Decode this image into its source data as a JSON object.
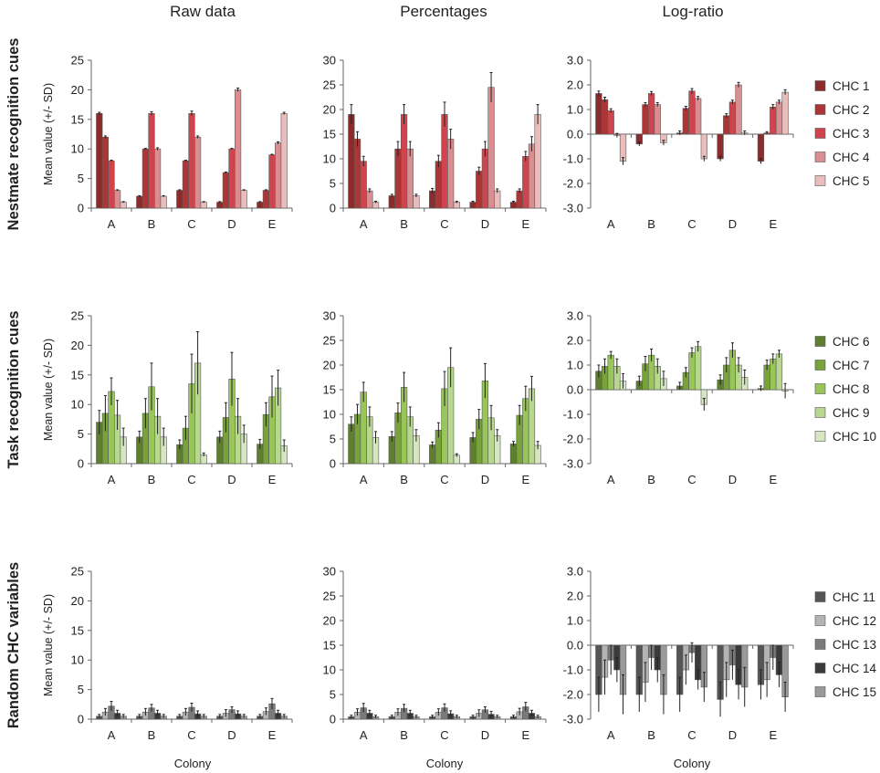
{
  "column_titles": [
    "Raw data",
    "Percentages",
    "Log-ratio"
  ],
  "row_titles": [
    "Nestmate recognition cues",
    "Task recognition cues",
    "Random CHC variables"
  ],
  "ylabel": "Mean value (+/- SD)",
  "xlabel": "Colony",
  "categories": [
    "A",
    "B",
    "C",
    "D",
    "E"
  ],
  "legends": [
    [
      {
        "name": "CHC 1",
        "color": "#8b2b2b"
      },
      {
        "name": "CHC 2",
        "color": "#ad3535"
      },
      {
        "name": "CHC 3",
        "color": "#d0454d"
      },
      {
        "name": "CHC 4",
        "color": "#d98e92"
      },
      {
        "name": "CHC 5",
        "color": "#eabcbc"
      }
    ],
    [
      {
        "name": "CHC 6",
        "color": "#5e7f2e"
      },
      {
        "name": "CHC 7",
        "color": "#78a23a"
      },
      {
        "name": "CHC 8",
        "color": "#98c658"
      },
      {
        "name": "CHC 9",
        "color": "#b8d890"
      },
      {
        "name": "CHC 10",
        "color": "#d6e6c0"
      }
    ],
    [
      {
        "name": "CHC 11",
        "color": "#555555"
      },
      {
        "name": "CHC 12",
        "color": "#b4b4b4"
      },
      {
        "name": "CHC 13",
        "color": "#7a7a7a"
      },
      {
        "name": "CHC 14",
        "color": "#3a3a3a"
      },
      {
        "name": "CHC 15",
        "color": "#9a9a9a"
      }
    ]
  ],
  "chart_data": [
    {
      "type": "bar",
      "row": 0,
      "col": 0,
      "title": "Raw data",
      "ylabel": "Mean value (+/- SD)",
      "ylim": [
        0,
        25
      ],
      "yticks": [
        0,
        5,
        10,
        15,
        20,
        25
      ],
      "ytick_labels": [
        "0",
        "5",
        "10",
        "15",
        "20",
        "25"
      ],
      "categories": [
        "A",
        "B",
        "C",
        "D",
        "E"
      ],
      "series": [
        {
          "name": "CHC 1",
          "values": [
            16,
            2,
            3,
            1,
            1
          ],
          "err": [
            0.2,
            0.1,
            0.1,
            0.1,
            0.1
          ]
        },
        {
          "name": "CHC 2",
          "values": [
            12,
            10,
            8,
            6,
            3
          ],
          "err": [
            0.2,
            0.1,
            0.1,
            0.1,
            0.1
          ]
        },
        {
          "name": "CHC 3",
          "values": [
            8,
            16,
            16,
            10,
            9
          ],
          "err": [
            0.1,
            0.3,
            0.4,
            0.1,
            0.1
          ]
        },
        {
          "name": "CHC 4",
          "values": [
            3,
            10,
            12,
            20,
            11
          ],
          "err": [
            0.1,
            0.2,
            0.2,
            0.3,
            0.2
          ]
        },
        {
          "name": "CHC 5",
          "values": [
            1,
            2,
            1,
            3,
            16
          ],
          "err": [
            0.1,
            0.1,
            0.1,
            0.1,
            0.2
          ]
        }
      ]
    },
    {
      "type": "bar",
      "row": 0,
      "col": 1,
      "title": "Percentages",
      "ylim": [
        0,
        30
      ],
      "yticks": [
        0,
        5,
        10,
        15,
        20,
        25,
        30
      ],
      "ytick_labels": [
        "0",
        "5",
        "10",
        "15",
        "20",
        "25",
        "30"
      ],
      "categories": [
        "A",
        "B",
        "C",
        "D",
        "E"
      ],
      "series": [
        {
          "name": "CHC 1",
          "values": [
            19,
            2.5,
            3.5,
            1.2,
            1.2
          ],
          "err": [
            2,
            0.3,
            0.5,
            0.2,
            0.2
          ]
        },
        {
          "name": "CHC 2",
          "values": [
            14,
            12,
            9.5,
            7.5,
            3.5
          ],
          "err": [
            1.5,
            1.5,
            1.2,
            0.8,
            0.4
          ]
        },
        {
          "name": "CHC 3",
          "values": [
            9.5,
            19,
            19,
            12,
            10.5
          ],
          "err": [
            1,
            2,
            2.5,
            1.5,
            1
          ]
        },
        {
          "name": "CHC 4",
          "values": [
            3.5,
            12,
            14,
            24.5,
            13
          ],
          "err": [
            0.4,
            1.5,
            2,
            3,
            1.5
          ]
        },
        {
          "name": "CHC 5",
          "values": [
            1.2,
            2.5,
            1.2,
            3.5,
            19
          ],
          "err": [
            0.2,
            0.3,
            0.2,
            0.4,
            2
          ]
        }
      ]
    },
    {
      "type": "bar",
      "row": 0,
      "col": 2,
      "title": "Log-ratio",
      "ylim": [
        -3,
        3
      ],
      "yticks": [
        -3,
        -2,
        -1,
        0,
        1,
        2,
        3
      ],
      "ytick_labels": [
        "-3.0",
        "-2.0",
        "-1.0",
        "0.0",
        "1.0",
        "2.0",
        "3.0"
      ],
      "categories": [
        "A",
        "B",
        "C",
        "D",
        "E"
      ],
      "series": [
        {
          "name": "CHC 1",
          "values": [
            1.65,
            -0.4,
            0.05,
            -1.0,
            -1.1
          ],
          "err": [
            0.1,
            0.08,
            0.08,
            0.1,
            0.1
          ]
        },
        {
          "name": "CHC 2",
          "values": [
            1.4,
            1.2,
            1.05,
            0.75,
            0.05
          ],
          "err": [
            0.1,
            0.08,
            0.08,
            0.08,
            0.05
          ]
        },
        {
          "name": "CHC 3",
          "values": [
            0.95,
            1.65,
            1.75,
            1.3,
            1.1
          ],
          "err": [
            0.08,
            0.08,
            0.1,
            0.08,
            0.1
          ]
        },
        {
          "name": "CHC 4",
          "values": [
            -0.05,
            1.2,
            1.45,
            2.0,
            1.3
          ],
          "err": [
            0.08,
            0.08,
            0.08,
            0.1,
            0.08
          ]
        },
        {
          "name": "CHC 5",
          "values": [
            -1.1,
            -0.35,
            -1.0,
            0.05,
            1.7
          ],
          "err": [
            0.15,
            0.1,
            0.1,
            0.08,
            0.1
          ]
        }
      ]
    },
    {
      "type": "bar",
      "row": 1,
      "col": 0,
      "ylim": [
        0,
        25
      ],
      "yticks": [
        0,
        5,
        10,
        15,
        20,
        25
      ],
      "ytick_labels": [
        "0",
        "5",
        "10",
        "15",
        "20",
        "25"
      ],
      "categories": [
        "A",
        "B",
        "C",
        "D",
        "E"
      ],
      "series": [
        {
          "name": "CHC 6",
          "values": [
            7,
            4.5,
            3.2,
            4.5,
            3.3
          ],
          "err": [
            2,
            1,
            0.8,
            1,
            0.8
          ]
        },
        {
          "name": "CHC 7",
          "values": [
            8.5,
            8.5,
            6,
            7.8,
            8.3
          ],
          "err": [
            3,
            2.5,
            2,
            2.5,
            2
          ]
        },
        {
          "name": "CHC 8",
          "values": [
            12.2,
            13,
            13.5,
            14.3,
            11.3
          ],
          "err": [
            2.3,
            4,
            5,
            4.5,
            3.5
          ]
        },
        {
          "name": "CHC 9",
          "values": [
            8.2,
            8,
            17,
            8,
            12.8
          ],
          "err": [
            2.5,
            3,
            5.3,
            3,
            3
          ]
        },
        {
          "name": "CHC 10",
          "values": [
            4.5,
            4.5,
            1.5,
            5,
            3
          ],
          "err": [
            1.5,
            1.5,
            0.3,
            1.5,
            1
          ]
        }
      ]
    },
    {
      "type": "bar",
      "row": 1,
      "col": 1,
      "ylim": [
        0,
        30
      ],
      "yticks": [
        0,
        5,
        10,
        15,
        20,
        25,
        30
      ],
      "ytick_labels": [
        "0",
        "5",
        "10",
        "15",
        "20",
        "25",
        "30"
      ],
      "categories": [
        "A",
        "B",
        "C",
        "D",
        "E"
      ],
      "series": [
        {
          "name": "CHC 6",
          "values": [
            8,
            5.5,
            3.8,
            5.3,
            4
          ],
          "err": [
            1.5,
            1,
            0.6,
            1,
            0.5
          ]
        },
        {
          "name": "CHC 7",
          "values": [
            10,
            10.3,
            6.8,
            9,
            9.8
          ],
          "err": [
            2,
            2,
            1.5,
            2,
            2
          ]
        },
        {
          "name": "CHC 8",
          "values": [
            14.5,
            15.5,
            15.2,
            16.8,
            13.2
          ],
          "err": [
            2,
            3,
            3.5,
            3.5,
            2.5
          ]
        },
        {
          "name": "CHC 9",
          "values": [
            9.5,
            9.5,
            19.5,
            9.3,
            15.2
          ],
          "err": [
            2,
            2,
            4,
            2.5,
            2.5
          ]
        },
        {
          "name": "CHC 10",
          "values": [
            5.3,
            5.7,
            1.7,
            5.7,
            3.7
          ],
          "err": [
            1.2,
            1.2,
            0.3,
            1.2,
            0.8
          ]
        }
      ]
    },
    {
      "type": "bar",
      "row": 1,
      "col": 2,
      "ylim": [
        -3,
        3
      ],
      "yticks": [
        -3,
        -2,
        -1,
        0,
        1,
        2,
        3
      ],
      "ytick_labels": [
        "-3.0",
        "-2.0",
        "-1.0",
        "0.0",
        "1.0",
        "2.0",
        "3.0"
      ],
      "categories": [
        "A",
        "B",
        "C",
        "D",
        "E"
      ],
      "series": [
        {
          "name": "CHC 6",
          "values": [
            0.75,
            0.35,
            0.15,
            0.4,
            0.05
          ],
          "err": [
            0.25,
            0.2,
            0.15,
            0.2,
            0.1
          ]
        },
        {
          "name": "CHC 7",
          "values": [
            0.95,
            1.05,
            0.7,
            1.0,
            1.0
          ],
          "err": [
            0.3,
            0.3,
            0.2,
            0.3,
            0.2
          ]
        },
        {
          "name": "CHC 8",
          "values": [
            1.4,
            1.4,
            1.5,
            1.6,
            1.25
          ],
          "err": [
            0.15,
            0.25,
            0.2,
            0.3,
            0.2
          ]
        },
        {
          "name": "CHC 9",
          "values": [
            0.95,
            0.95,
            1.75,
            1.0,
            1.45
          ],
          "err": [
            0.3,
            0.3,
            0.2,
            0.3,
            0.15
          ]
        },
        {
          "name": "CHC 10",
          "values": [
            0.35,
            0.45,
            -0.6,
            0.5,
            -0.05
          ],
          "err": [
            0.3,
            0.3,
            0.25,
            0.3,
            0.3
          ]
        }
      ]
    },
    {
      "type": "bar",
      "row": 2,
      "col": 0,
      "ylim": [
        0,
        25
      ],
      "yticks": [
        0,
        5,
        10,
        15,
        20,
        25
      ],
      "ytick_labels": [
        "0",
        "5",
        "10",
        "15",
        "20",
        "25"
      ],
      "categories": [
        "A",
        "B",
        "C",
        "D",
        "E"
      ],
      "series": [
        {
          "name": "CHC 11",
          "values": [
            0.5,
            0.5,
            0.5,
            0.5,
            0.5
          ],
          "err": [
            0.3,
            0.3,
            0.3,
            0.3,
            0.3
          ]
        },
        {
          "name": "CHC 12",
          "values": [
            1.2,
            1.2,
            1.2,
            1.0,
            1.3
          ],
          "err": [
            0.6,
            0.6,
            0.6,
            0.6,
            0.6
          ]
        },
        {
          "name": "CHC 13",
          "values": [
            2.2,
            1.9,
            2.0,
            1.6,
            2.6
          ],
          "err": [
            0.8,
            0.6,
            0.7,
            0.5,
            0.9
          ]
        },
        {
          "name": "CHC 14",
          "values": [
            1.0,
            1.0,
            0.9,
            0.9,
            1.0
          ],
          "err": [
            0.5,
            0.5,
            0.5,
            0.5,
            0.5
          ]
        },
        {
          "name": "CHC 15",
          "values": [
            0.5,
            0.5,
            0.5,
            0.5,
            0.5
          ],
          "err": [
            0.3,
            0.3,
            0.3,
            0.3,
            0.3
          ]
        }
      ]
    },
    {
      "type": "bar",
      "row": 2,
      "col": 1,
      "ylim": [
        0,
        30
      ],
      "yticks": [
        0,
        5,
        10,
        15,
        20,
        25,
        30
      ],
      "ytick_labels": [
        "0",
        "5",
        "10",
        "15",
        "20",
        "25",
        "30"
      ],
      "categories": [
        "A",
        "B",
        "C",
        "D",
        "E"
      ],
      "series": [
        {
          "name": "CHC 11",
          "values": [
            0.5,
            0.5,
            0.5,
            0.5,
            0.5
          ],
          "err": [
            0.3,
            0.3,
            0.3,
            0.3,
            0.3
          ]
        },
        {
          "name": "CHC 12",
          "values": [
            1.4,
            1.4,
            1.4,
            1.2,
            1.5
          ],
          "err": [
            0.7,
            0.7,
            0.7,
            0.7,
            0.7
          ]
        },
        {
          "name": "CHC 13",
          "values": [
            2.3,
            2.2,
            2.3,
            1.9,
            2.5
          ],
          "err": [
            0.9,
            0.8,
            0.8,
            0.6,
            0.9
          ]
        },
        {
          "name": "CHC 14",
          "values": [
            1.2,
            1.2,
            1.1,
            1.0,
            1.2
          ],
          "err": [
            0.6,
            0.6,
            0.6,
            0.6,
            0.6
          ]
        },
        {
          "name": "CHC 15",
          "values": [
            0.5,
            0.5,
            0.5,
            0.5,
            0.5
          ],
          "err": [
            0.3,
            0.3,
            0.3,
            0.3,
            0.3
          ]
        }
      ]
    },
    {
      "type": "bar",
      "row": 2,
      "col": 2,
      "ylim": [
        -3,
        3
      ],
      "yticks": [
        -3,
        -2,
        -1,
        0,
        1,
        2,
        3
      ],
      "ytick_labels": [
        "-3.0",
        "-2.0",
        "-1.0",
        "0.0",
        "1.0",
        "2.0",
        "3.0"
      ],
      "categories": [
        "A",
        "B",
        "C",
        "D",
        "E"
      ],
      "series": [
        {
          "name": "CHC 11",
          "values": [
            -2.0,
            -2.0,
            -2.0,
            -2.2,
            -1.6
          ],
          "err": [
            0.7,
            0.7,
            0.7,
            0.7,
            0.6
          ]
        },
        {
          "name": "CHC 12",
          "values": [
            -1.3,
            -1.5,
            -1.0,
            -1.4,
            -1.4
          ],
          "err": [
            0.7,
            0.8,
            0.6,
            0.7,
            0.7
          ]
        },
        {
          "name": "CHC 13",
          "values": [
            -0.6,
            -0.5,
            -0.3,
            -0.8,
            -0.5
          ],
          "err": [
            0.6,
            0.5,
            0.4,
            0.6,
            0.5
          ]
        },
        {
          "name": "CHC 14",
          "values": [
            -1.0,
            -1.0,
            -1.4,
            -1.6,
            -1.2
          ],
          "err": [
            0.5,
            0.5,
            0.4,
            0.6,
            0.5
          ]
        },
        {
          "name": "CHC 15",
          "values": [
            -2.0,
            -2.0,
            -1.7,
            -1.7,
            -2.1
          ],
          "err": [
            0.8,
            0.8,
            0.6,
            0.8,
            0.6
          ]
        }
      ]
    }
  ]
}
